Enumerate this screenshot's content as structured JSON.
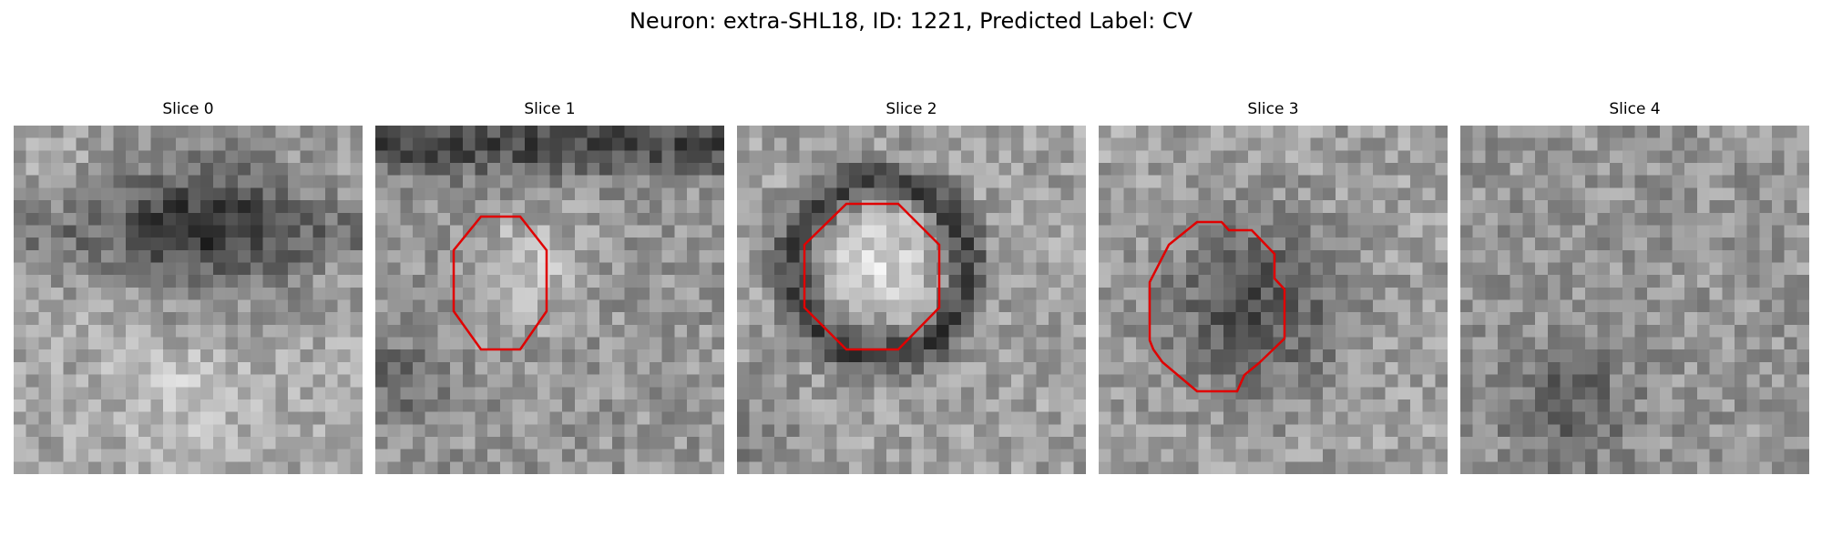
{
  "figure": {
    "title": "Neuron: extra-SHL18, ID: 1221, Predicted Label: CV"
  },
  "panels": [
    {
      "title": "Slice 0"
    },
    {
      "title": "Slice 1"
    },
    {
      "title": "Slice 2"
    },
    {
      "title": "Slice 3"
    },
    {
      "title": "Slice 4"
    }
  ],
  "colors": {
    "contour": "#e00000",
    "colormap": "gray"
  }
}
